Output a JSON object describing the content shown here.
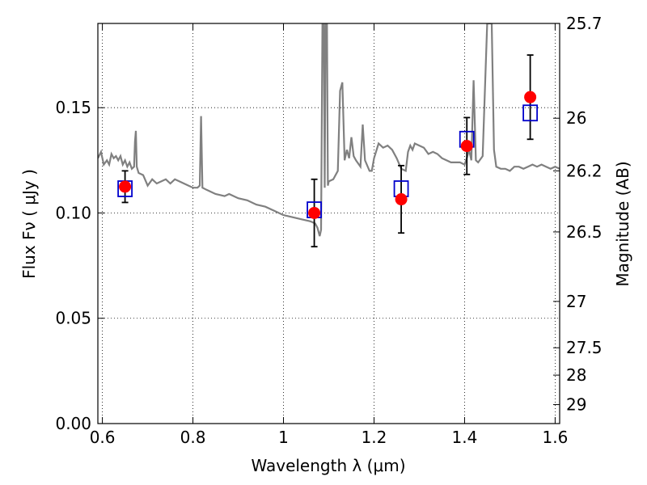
{
  "chart_data": {
    "type": "scatter",
    "xlabel": "Wavelength  λ (μm)",
    "ylabel": "Flux  Fν  ( μJy )",
    "y2label": "Magnitude (AB)",
    "xlim": [
      0.59,
      1.61
    ],
    "ylim": [
      0.0,
      0.19
    ],
    "grid": true,
    "x_ticks": [
      0.6,
      0.8,
      1.0,
      1.2,
      1.4,
      1.6
    ],
    "x_tick_labels": [
      "0.6",
      "0.8",
      "1",
      "1.2",
      "1.4",
      "1.6"
    ],
    "y_ticks": [
      0.0,
      0.05,
      0.1,
      0.15
    ],
    "y_tick_labels": [
      "0.00",
      "0.05",
      "0.10",
      "0.15"
    ],
    "y2_ticks": [
      {
        "label": "25.7",
        "flux": 0.19
      },
      {
        "label": "26",
        "flux": 0.145
      },
      {
        "label": "26.2",
        "flux": 0.12
      },
      {
        "label": "26.5",
        "flux": 0.091
      },
      {
        "label": "27",
        "flux": 0.058
      },
      {
        "label": "27.5",
        "flux": 0.036
      },
      {
        "label": "28",
        "flux": 0.023
      },
      {
        "label": "29",
        "flux": 0.009
      }
    ],
    "spectrum": {
      "color": "#808080",
      "points": [
        [
          0.59,
          0.126
        ],
        [
          0.597,
          0.129
        ],
        [
          0.603,
          0.123
        ],
        [
          0.61,
          0.125
        ],
        [
          0.615,
          0.123
        ],
        [
          0.62,
          0.128
        ],
        [
          0.625,
          0.126
        ],
        [
          0.63,
          0.127
        ],
        [
          0.635,
          0.125
        ],
        [
          0.64,
          0.127
        ],
        [
          0.645,
          0.123
        ],
        [
          0.65,
          0.125
        ],
        [
          0.655,
          0.122
        ],
        [
          0.66,
          0.124
        ],
        [
          0.665,
          0.121
        ],
        [
          0.67,
          0.122
        ],
        [
          0.672,
          0.134
        ],
        [
          0.674,
          0.139
        ],
        [
          0.676,
          0.122
        ],
        [
          0.68,
          0.119
        ],
        [
          0.69,
          0.118
        ],
        [
          0.7,
          0.113
        ],
        [
          0.71,
          0.116
        ],
        [
          0.72,
          0.114
        ],
        [
          0.73,
          0.115
        ],
        [
          0.74,
          0.116
        ],
        [
          0.75,
          0.114
        ],
        [
          0.76,
          0.116
        ],
        [
          0.77,
          0.115
        ],
        [
          0.78,
          0.114
        ],
        [
          0.79,
          0.113
        ],
        [
          0.8,
          0.112
        ],
        [
          0.81,
          0.112
        ],
        [
          0.815,
          0.113
        ],
        [
          0.818,
          0.146
        ],
        [
          0.821,
          0.112
        ],
        [
          0.83,
          0.111
        ],
        [
          0.85,
          0.109
        ],
        [
          0.87,
          0.108
        ],
        [
          0.88,
          0.109
        ],
        [
          0.9,
          0.107
        ],
        [
          0.92,
          0.106
        ],
        [
          0.94,
          0.104
        ],
        [
          0.96,
          0.103
        ],
        [
          0.98,
          0.101
        ],
        [
          1.0,
          0.099
        ],
        [
          1.02,
          0.098
        ],
        [
          1.04,
          0.097
        ],
        [
          1.06,
          0.096
        ],
        [
          1.07,
          0.095
        ],
        [
          1.075,
          0.093
        ],
        [
          1.08,
          0.089
        ],
        [
          1.083,
          0.092
        ],
        [
          1.086,
          0.19
        ],
        [
          1.089,
          0.19
        ],
        [
          1.091,
          0.112
        ],
        [
          1.093,
          0.19
        ],
        [
          1.096,
          0.19
        ],
        [
          1.098,
          0.113
        ],
        [
          1.1,
          0.115
        ],
        [
          1.11,
          0.116
        ],
        [
          1.12,
          0.12
        ],
        [
          1.125,
          0.158
        ],
        [
          1.13,
          0.162
        ],
        [
          1.135,
          0.125
        ],
        [
          1.14,
          0.13
        ],
        [
          1.145,
          0.126
        ],
        [
          1.15,
          0.136
        ],
        [
          1.155,
          0.127
        ],
        [
          1.16,
          0.125
        ],
        [
          1.17,
          0.122
        ],
        [
          1.175,
          0.142
        ],
        [
          1.18,
          0.125
        ],
        [
          1.19,
          0.12
        ],
        [
          1.195,
          0.12
        ],
        [
          1.2,
          0.126
        ],
        [
          1.21,
          0.133
        ],
        [
          1.22,
          0.131
        ],
        [
          1.23,
          0.132
        ],
        [
          1.24,
          0.13
        ],
        [
          1.25,
          0.126
        ],
        [
          1.26,
          0.121
        ],
        [
          1.27,
          0.12
        ],
        [
          1.275,
          0.129
        ],
        [
          1.28,
          0.132
        ],
        [
          1.285,
          0.13
        ],
        [
          1.29,
          0.133
        ],
        [
          1.3,
          0.132
        ],
        [
          1.31,
          0.131
        ],
        [
          1.32,
          0.128
        ],
        [
          1.33,
          0.129
        ],
        [
          1.34,
          0.128
        ],
        [
          1.35,
          0.126
        ],
        [
          1.36,
          0.125
        ],
        [
          1.37,
          0.124
        ],
        [
          1.38,
          0.124
        ],
        [
          1.39,
          0.124
        ],
        [
          1.4,
          0.123
        ],
        [
          1.405,
          0.126
        ],
        [
          1.41,
          0.13
        ],
        [
          1.415,
          0.125
        ],
        [
          1.42,
          0.163
        ],
        [
          1.425,
          0.125
        ],
        [
          1.43,
          0.124
        ],
        [
          1.44,
          0.127
        ],
        [
          1.45,
          0.19
        ],
        [
          1.46,
          0.19
        ],
        [
          1.465,
          0.13
        ],
        [
          1.47,
          0.122
        ],
        [
          1.48,
          0.121
        ],
        [
          1.49,
          0.121
        ],
        [
          1.5,
          0.12
        ],
        [
          1.51,
          0.122
        ],
        [
          1.52,
          0.122
        ],
        [
          1.53,
          0.121
        ],
        [
          1.54,
          0.122
        ],
        [
          1.55,
          0.123
        ],
        [
          1.56,
          0.122
        ],
        [
          1.57,
          0.123
        ],
        [
          1.58,
          0.122
        ],
        [
          1.59,
          0.121
        ],
        [
          1.6,
          0.122
        ],
        [
          1.61,
          0.121
        ]
      ]
    },
    "observed": {
      "color": "#ff0000",
      "points": [
        {
          "x": 0.65,
          "y": 0.1125,
          "err": 0.0075
        },
        {
          "x": 1.068,
          "y": 0.1,
          "err": 0.016
        },
        {
          "x": 1.26,
          "y": 0.1065,
          "err": 0.016
        },
        {
          "x": 1.405,
          "y": 0.1318,
          "err": 0.0135
        },
        {
          "x": 1.545,
          "y": 0.155,
          "err": 0.02
        }
      ]
    },
    "model": {
      "color": "#0000cc",
      "points": [
        {
          "x": 0.65,
          "y": 0.1115
        },
        {
          "x": 1.068,
          "y": 0.1015
        },
        {
          "x": 1.26,
          "y": 0.1115
        },
        {
          "x": 1.405,
          "y": 0.135
        },
        {
          "x": 1.545,
          "y": 0.1475
        }
      ]
    }
  }
}
